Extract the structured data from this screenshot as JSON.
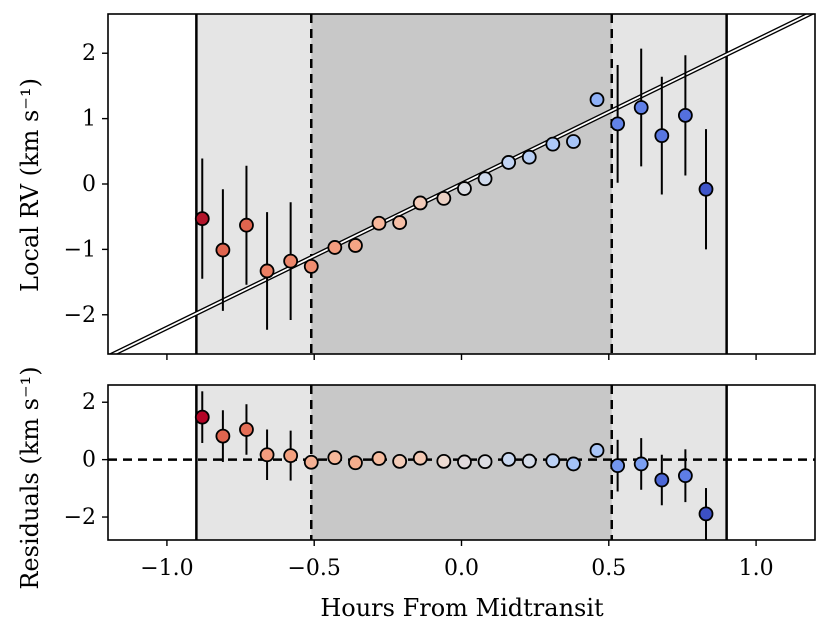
{
  "chart_data": {
    "type": "scatter",
    "xlabel": "Hours From Midtransit",
    "xlim": [
      -1.2,
      1.2
    ],
    "xticks": [
      -1.0,
      -0.5,
      0.0,
      0.5,
      1.0
    ],
    "xtick_labels": [
      "−1.0",
      "−0.5",
      "0.0",
      "0.5",
      "1.0"
    ],
    "transit_contacts": {
      "outer": [
        -0.9,
        0.9
      ],
      "inner": [
        -0.51,
        0.51
      ]
    },
    "colors": {
      "outer_shade": "#e5e5e5",
      "inner_shade": "#c8c8c8"
    },
    "top": {
      "ylabel": "Local RV (km s⁻¹)",
      "ylim": [
        -2.6,
        2.6
      ],
      "yticks": [
        -2,
        -1,
        0,
        1,
        2
      ],
      "ytick_labels": [
        "−2",
        "−1",
        "0",
        "1",
        "2"
      ],
      "model_line": {
        "slope": 2.2,
        "intercept": 0.0
      },
      "x": [
        -0.88,
        -0.81,
        -0.73,
        -0.66,
        -0.58,
        -0.51,
        -0.43,
        -0.36,
        -0.28,
        -0.21,
        -0.14,
        -0.06,
        0.01,
        0.08,
        0.16,
        0.23,
        0.31,
        0.38,
        0.46,
        0.53,
        0.61,
        0.68,
        0.76,
        0.83
      ],
      "y": [
        -0.53,
        -1.01,
        -0.63,
        -1.33,
        -1.18,
        -1.26,
        -0.97,
        -0.94,
        -0.6,
        -0.59,
        -0.29,
        -0.22,
        -0.07,
        0.08,
        0.33,
        0.41,
        0.61,
        0.65,
        1.29,
        0.92,
        1.17,
        0.74,
        1.05,
        -0.08
      ],
      "yerr": [
        0.92,
        0.93,
        0.91,
        0.9,
        0.9,
        0.06,
        0.07,
        0.09,
        0.07,
        0.07,
        0.09,
        0.1,
        0.08,
        0.07,
        0.05,
        0.05,
        0.05,
        0.05,
        0.09,
        0.9,
        0.9,
        0.9,
        0.92,
        0.92
      ],
      "colors": [
        "#b3152b",
        "#e0654f",
        "#e0654f",
        "#eb7f63",
        "#ed876b",
        "#ef8d70",
        "#f39c7e",
        "#f5a585",
        "#f7b79b",
        "#f6bfa6",
        "#f2cbb9",
        "#ebd1c4",
        "#dadce2",
        "#cfdaec",
        "#c2d4f3",
        "#b8cff5",
        "#adc8f7",
        "#a6c4f7",
        "#8fb1f7",
        "#6283e7",
        "#5f7fe6",
        "#5876e0",
        "#5470de",
        "#3e55c9"
      ]
    },
    "bottom": {
      "ylabel": "Residuals (km s⁻¹)",
      "ylim": [
        -2.8,
        2.6
      ],
      "yticks": [
        -2,
        0,
        2
      ],
      "ytick_labels": [
        "−2",
        "0",
        "2"
      ],
      "x": [
        -0.88,
        -0.81,
        -0.73,
        -0.66,
        -0.58,
        -0.51,
        -0.43,
        -0.36,
        -0.28,
        -0.21,
        -0.14,
        -0.06,
        0.01,
        0.08,
        0.16,
        0.23,
        0.31,
        0.38,
        0.46,
        0.53,
        0.61,
        0.68,
        0.76,
        0.83
      ],
      "y": [
        1.48,
        0.82,
        1.05,
        0.17,
        0.14,
        -0.09,
        0.07,
        -0.11,
        0.04,
        -0.06,
        0.05,
        -0.06,
        -0.08,
        -0.07,
        0.01,
        -0.05,
        -0.04,
        -0.15,
        0.32,
        -0.21,
        -0.15,
        -0.71,
        -0.56,
        -1.89
      ],
      "yerr": [
        0.9,
        0.9,
        0.88,
        0.88,
        0.87,
        0.05,
        0.05,
        0.05,
        0.05,
        0.05,
        0.05,
        0.05,
        0.05,
        0.05,
        0.05,
        0.05,
        0.05,
        0.05,
        0.05,
        0.9,
        0.9,
        0.88,
        0.92,
        0.9
      ],
      "colors": [
        "#b40426",
        "#e0654f",
        "#e46e56",
        "#f39c7e",
        "#f3a07f",
        "#f5b194",
        "#f6b89a",
        "#f5ad8d",
        "#f6bc9f",
        "#f2cbb7",
        "#f3c9b4",
        "#eddbd2",
        "#e1dadc",
        "#dcdde3",
        "#c8d7ef",
        "#d4dbe8",
        "#bcd2f6",
        "#a4c2f6",
        "#a9c6f8",
        "#7396ef",
        "#7b9ff2",
        "#4c67d6",
        "#5e7de7",
        "#3c50c4"
      ]
    }
  }
}
